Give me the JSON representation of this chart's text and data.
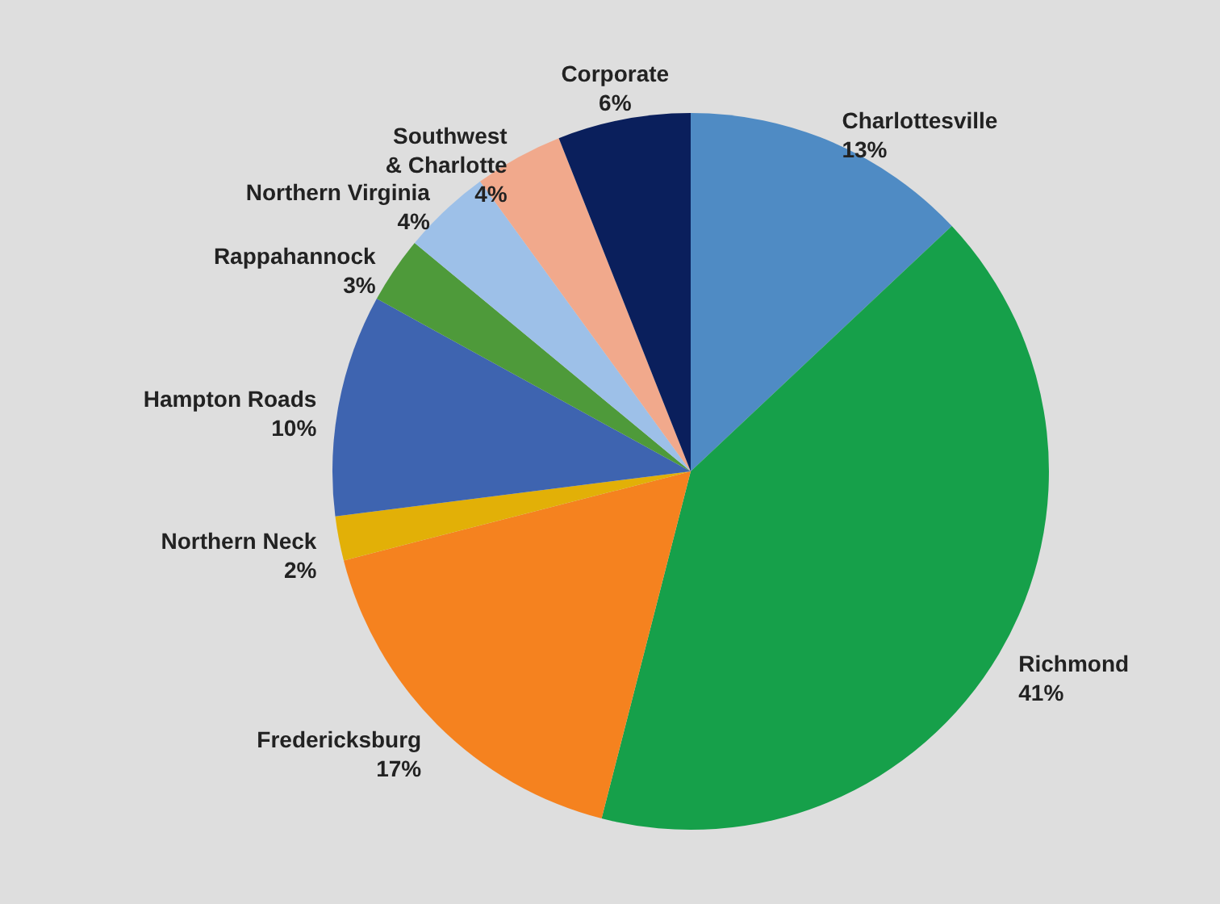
{
  "chart_data": {
    "type": "pie",
    "categories": [
      "Charlottesville",
      "Richmond",
      "Fredericksburg",
      "Northern Neck",
      "Hampton Roads",
      "Rappahannock",
      "Northern Virginia",
      "Southwest & Charlotte",
      "Corporate"
    ],
    "values": [
      13,
      41,
      17,
      2,
      10,
      3,
      4,
      4,
      6
    ],
    "colors": [
      "#4f8bc4",
      "#16a04a",
      "#f5821f",
      "#e2b007",
      "#3e64b0",
      "#4e9a3a",
      "#9dc0e8",
      "#f1a98c",
      "#0a1f5c"
    ],
    "value_labels": [
      "13%",
      "41%",
      "17%",
      "2%",
      "10%",
      "3%",
      "4%",
      "4%",
      "6%"
    ]
  }
}
